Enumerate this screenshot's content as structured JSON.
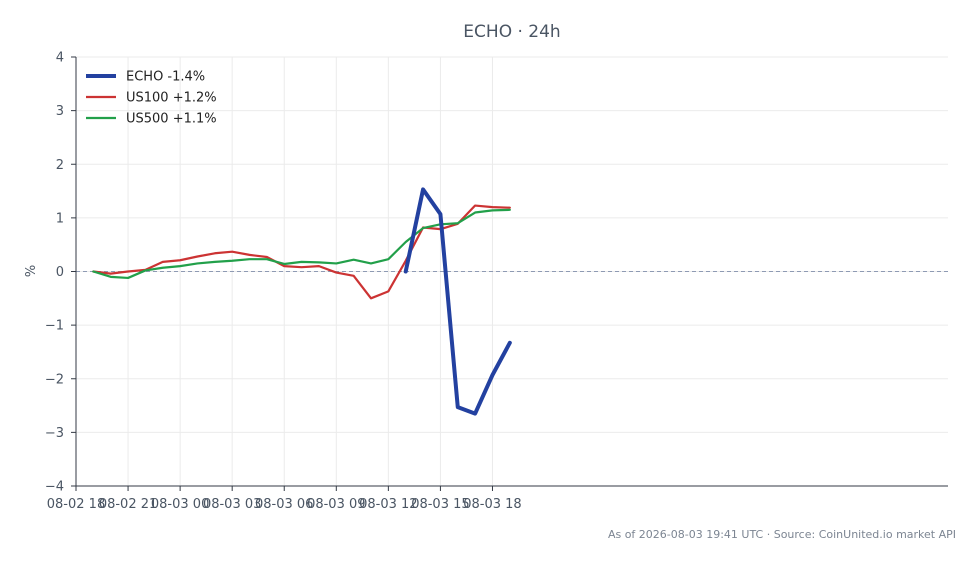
{
  "chart_data": {
    "type": "line",
    "title": "ECHO · 24h",
    "xlabel": "",
    "ylabel": "%",
    "x_tick_labels": [
      "08-02 18",
      "08-02 21",
      "08-03 00",
      "08-03 03",
      "08-03 06",
      "08-03 09",
      "08-03 12",
      "08-03 15",
      "08-03 18"
    ],
    "y_tick_labels": [
      "−4",
      "−3",
      "−2",
      "−1",
      "0",
      "1",
      "2",
      "3",
      "4"
    ],
    "ylim": [
      -4,
      4
    ],
    "xlim": [
      "2026-08-02 18:00",
      "2026-08-04 20:15"
    ],
    "grid": true,
    "legend_position": "top-left",
    "baseline": 0,
    "series": [
      {
        "name": "ECHO -1.4%",
        "color": "#2341a0",
        "x": [
          "2026-08-03 13:00",
          "2026-08-03 14:00",
          "2026-08-03 15:00",
          "2026-08-03 16:00",
          "2026-08-03 17:00",
          "2026-08-03 18:00",
          "2026-08-03 19:00"
        ],
        "values": [
          0.0,
          1.53,
          1.07,
          -2.53,
          -2.65,
          -1.93,
          -1.33
        ]
      },
      {
        "name": "US100 +1.2%",
        "color": "#cc3333",
        "x": [
          "2026-08-02 19:00",
          "2026-08-02 20:00",
          "2026-08-02 21:00",
          "2026-08-02 22:00",
          "2026-08-02 23:00",
          "2026-08-03 00:00",
          "2026-08-03 01:00",
          "2026-08-03 02:00",
          "2026-08-03 03:00",
          "2026-08-03 04:00",
          "2026-08-03 05:00",
          "2026-08-03 06:00",
          "2026-08-03 07:00",
          "2026-08-03 08:00",
          "2026-08-03 09:00",
          "2026-08-03 10:00",
          "2026-08-03 11:00",
          "2026-08-03 12:00",
          "2026-08-03 13:00",
          "2026-08-03 14:00",
          "2026-08-03 15:00",
          "2026-08-03 16:00",
          "2026-08-03 17:00",
          "2026-08-03 18:00",
          "2026-08-03 19:00"
        ],
        "values": [
          0.0,
          -0.04,
          0.0,
          0.03,
          0.18,
          0.21,
          0.28,
          0.34,
          0.37,
          0.31,
          0.27,
          0.1,
          0.08,
          0.1,
          -0.02,
          -0.08,
          -0.5,
          -0.37,
          0.2,
          0.82,
          0.79,
          0.89,
          1.23,
          1.2,
          1.19
        ]
      },
      {
        "name": "US500 +1.1%",
        "color": "#22a04a",
        "x": [
          "2026-08-02 19:00",
          "2026-08-02 20:00",
          "2026-08-02 21:00",
          "2026-08-02 22:00",
          "2026-08-02 23:00",
          "2026-08-03 00:00",
          "2026-08-03 01:00",
          "2026-08-03 02:00",
          "2026-08-03 03:00",
          "2026-08-03 04:00",
          "2026-08-03 05:00",
          "2026-08-03 06:00",
          "2026-08-03 07:00",
          "2026-08-03 08:00",
          "2026-08-03 09:00",
          "2026-08-03 10:00",
          "2026-08-03 11:00",
          "2026-08-03 12:00",
          "2026-08-03 13:00",
          "2026-08-03 14:00",
          "2026-08-03 15:00",
          "2026-08-03 16:00",
          "2026-08-03 17:00",
          "2026-08-03 18:00",
          "2026-08-03 19:00"
        ],
        "values": [
          0.0,
          -0.1,
          -0.12,
          0.02,
          0.07,
          0.1,
          0.15,
          0.18,
          0.2,
          0.23,
          0.23,
          0.14,
          0.18,
          0.17,
          0.15,
          0.22,
          0.15,
          0.23,
          0.55,
          0.81,
          0.88,
          0.9,
          1.1,
          1.14,
          1.15
        ]
      }
    ]
  },
  "footer": {
    "text": "As of 2026-08-03 19:41 UTC · Source: CoinUnited.io market API"
  }
}
